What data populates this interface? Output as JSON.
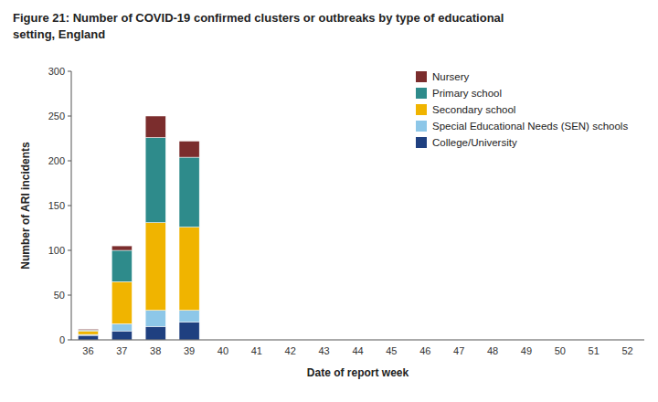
{
  "chart_data": {
    "type": "bar",
    "stacked": true,
    "title": "Figure 21: Number of COVID-19 confirmed clusters or outbreaks by type of educational",
    "subtitle": "setting, England",
    "x_label": "Date of report week",
    "y_label": "Number of ARI incidents",
    "categories": [
      "36",
      "37",
      "38",
      "39",
      "40",
      "41",
      "42",
      "43",
      "44",
      "45",
      "46",
      "47",
      "48",
      "49",
      "50",
      "51",
      "52"
    ],
    "series": [
      {
        "name": "College/University",
        "color": "#1f4080",
        "values": [
          5,
          10,
          15,
          20,
          0,
          0,
          0,
          0,
          0,
          0,
          0,
          0,
          0,
          0,
          0,
          0,
          0
        ]
      },
      {
        "name": "Special Educational Needs (SEN) schools",
        "color": "#8dc7e8",
        "values": [
          1,
          8,
          18,
          13,
          0,
          0,
          0,
          0,
          0,
          0,
          0,
          0,
          0,
          0,
          0,
          0,
          0
        ]
      },
      {
        "name": "Secondary school",
        "color": "#f0b400",
        "values": [
          4,
          47,
          98,
          93,
          0,
          0,
          0,
          0,
          0,
          0,
          0,
          0,
          0,
          0,
          0,
          0,
          0
        ]
      },
      {
        "name": "Primary school",
        "color": "#2e8b8b",
        "values": [
          1,
          35,
          95,
          78,
          0,
          0,
          0,
          0,
          0,
          0,
          0,
          0,
          0,
          0,
          0,
          0,
          0
        ]
      },
      {
        "name": "Nursery",
        "color": "#7b2d2d",
        "values": [
          1,
          5,
          24,
          18,
          0,
          0,
          0,
          0,
          0,
          0,
          0,
          0,
          0,
          0,
          0,
          0,
          0
        ]
      }
    ],
    "ylim": [
      0,
      300
    ],
    "yticks": [
      0,
      50,
      100,
      150,
      200,
      250,
      300
    ],
    "grid": false,
    "legend": "upper right"
  }
}
